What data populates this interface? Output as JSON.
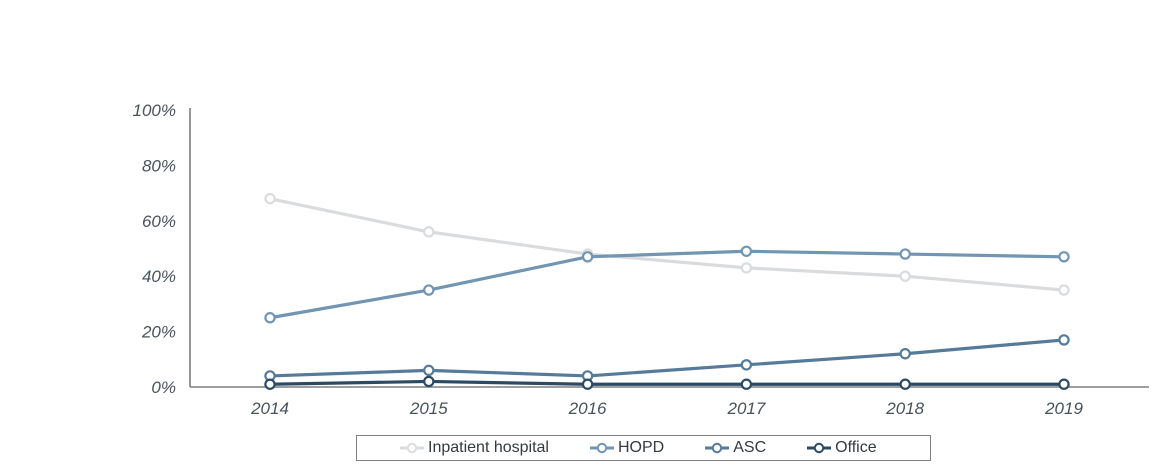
{
  "chart_data": {
    "type": "line",
    "x": [
      "2014",
      "2015",
      "2016",
      "2017",
      "2018",
      "2019"
    ],
    "series": [
      {
        "name": "Inpatient hospital",
        "values": [
          68,
          56,
          48,
          43,
          40,
          35
        ],
        "color": "#d9dbdd"
      },
      {
        "name": "HOPD",
        "values": [
          25,
          35,
          47,
          49,
          48,
          47
        ],
        "color": "#7195b3"
      },
      {
        "name": "ASC",
        "values": [
          4,
          6,
          4,
          8,
          12,
          17
        ],
        "color": "#567a99"
      },
      {
        "name": "Office",
        "values": [
          1,
          2,
          1,
          1,
          1,
          1
        ],
        "color": "#2c4a63"
      }
    ],
    "title": "",
    "xlabel": "",
    "ylabel": "",
    "ylim": [
      0,
      100
    ],
    "yticks": [
      0,
      20,
      40,
      60,
      80,
      100
    ],
    "ytick_labels": [
      "0%",
      "20%",
      "40%",
      "60%",
      "80%",
      "100%"
    ],
    "grid": false,
    "marker": "open-circle",
    "legend_position": "bottom"
  },
  "legend": {
    "items": [
      {
        "label": "Inpatient hospital"
      },
      {
        "label": "HOPD"
      },
      {
        "label": "ASC"
      },
      {
        "label": "Office"
      }
    ]
  },
  "colors": {
    "axis_line": "#7f7f7f",
    "tick_text": "#49525c",
    "legend_border": "#7f7f7f",
    "legend_text": "#333a42",
    "background": "#ffffff",
    "marker_fill": "#ffffff"
  }
}
